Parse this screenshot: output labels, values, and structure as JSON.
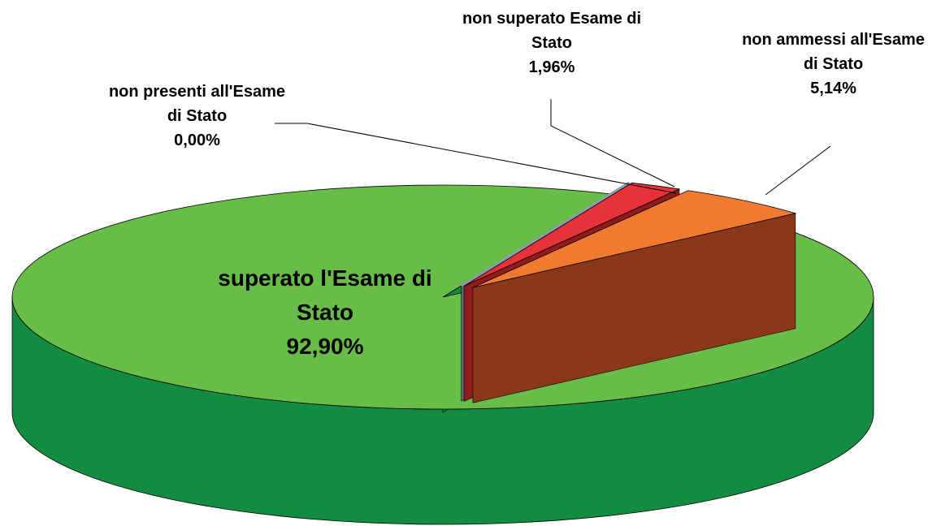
{
  "chart_data": {
    "type": "pie3d",
    "categories": [
      "superato l'Esame di Stato",
      "non presenti all'Esame di Stato",
      "non superato Esame di Stato",
      "non ammessi all'Esame di Stato"
    ],
    "values": [
      92.9,
      0,
      1.96,
      5.14
    ],
    "value_labels": [
      "92,90%",
      "0,00%",
      "1,96%",
      "5,14%"
    ],
    "colors": [
      "#68bd48",
      "#8d9bab",
      "#e8323a",
      "#f07a30"
    ],
    "side_colors": [
      "#138b40",
      "#5d6b7a",
      "#8e1c1c",
      "#8a3818"
    ]
  }
}
